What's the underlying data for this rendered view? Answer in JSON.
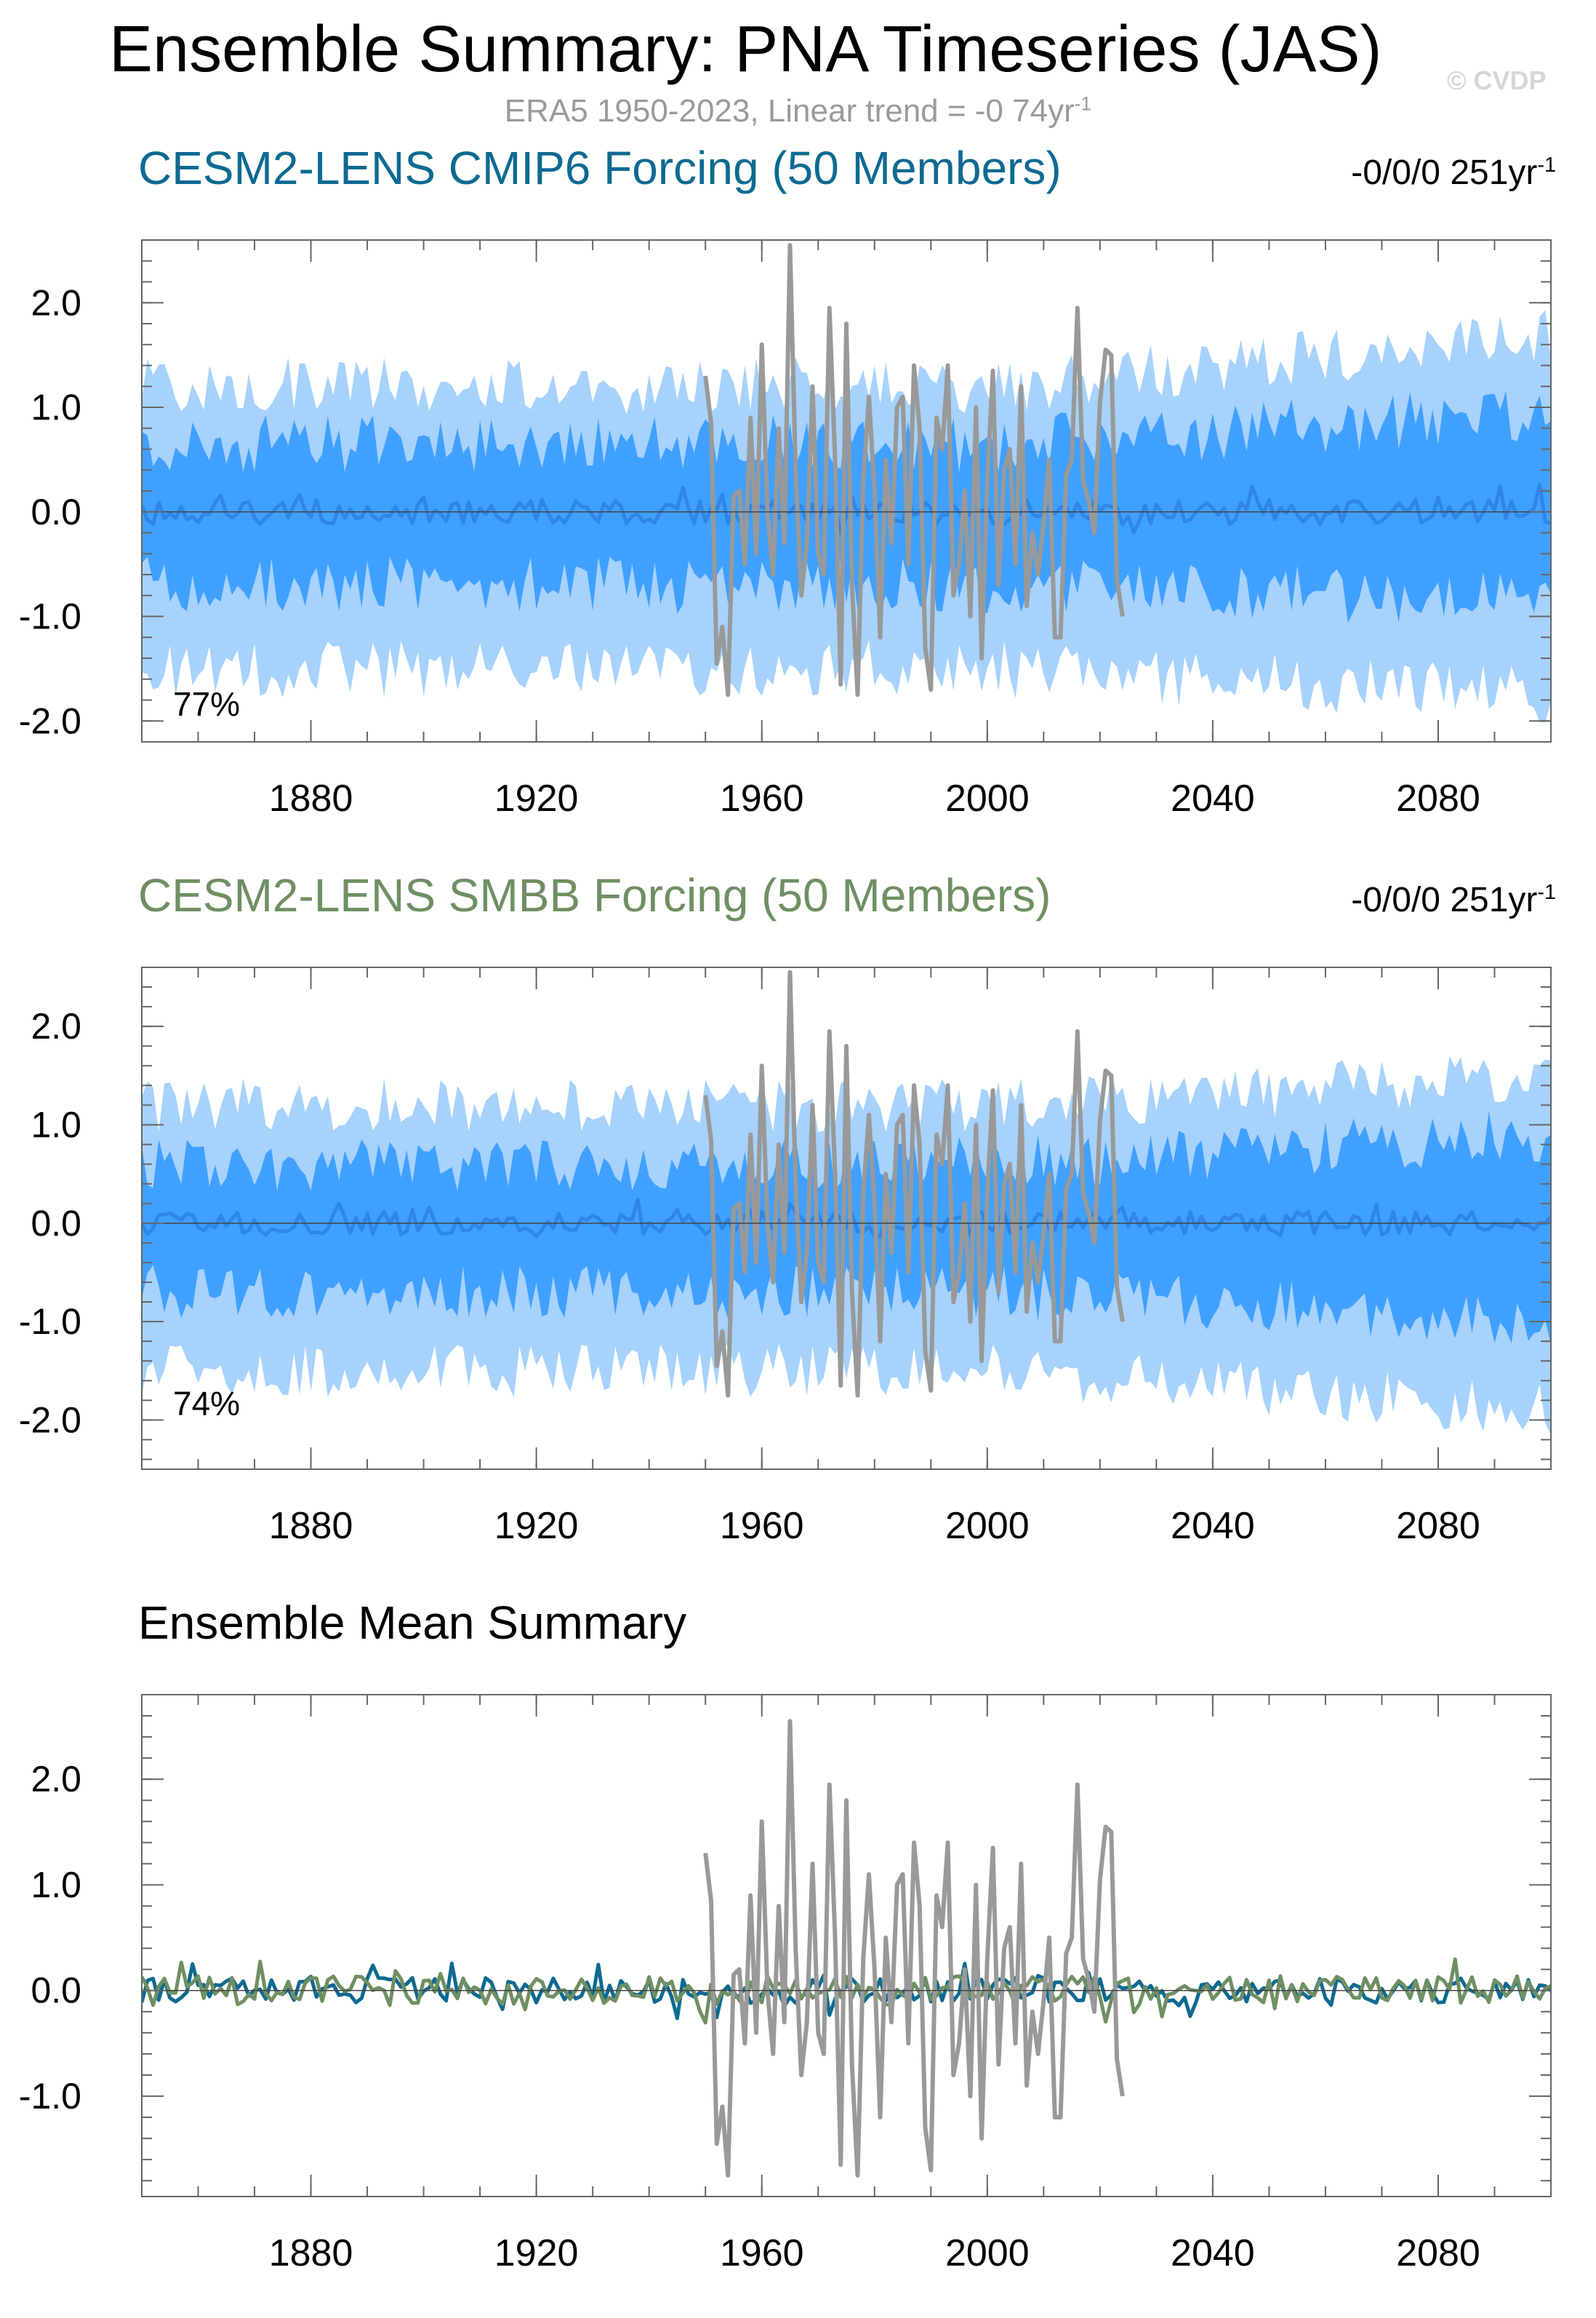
{
  "header": {
    "title": "Ensemble Summary: PNA Timeseries (JAS)",
    "subtitle_prefix": "ERA5 1950-2023, Linear trend = -0 74yr",
    "subtitle_sup": "-1",
    "watermark": "© CVDP"
  },
  "colors": {
    "outer_band": "#a6d2fb",
    "inner_band": "#3fa0ff",
    "ensemble_mean_band": "#2f86e6",
    "obs": "#999999",
    "cmip6": "#0e6a91",
    "smbb": "#6f8f63"
  },
  "panels": [
    {
      "title": "CESM2-LENS CMIP6 Forcing (50 Members)",
      "title_color": "#0e6a91",
      "trend_text": "-0/0/0 251yr",
      "trend_sup": "-1",
      "percent": "77%"
    },
    {
      "title": "CESM2-LENS SMBB Forcing (50 Members)",
      "title_color": "#6f8f63",
      "trend_text": "-0/0/0 251yr",
      "trend_sup": "-1",
      "percent": "74%"
    },
    {
      "title": "Ensemble Mean Summary",
      "title_color": "#000000"
    }
  ],
  "chart_data": [
    {
      "type": "area",
      "title": "CESM2-LENS CMIP6 Forcing (50 Members)",
      "x_range": [
        1850,
        2100
      ],
      "ylim": [
        -2.2,
        2.6
      ],
      "xticks": [
        1880,
        1920,
        1960,
        2000,
        2040,
        2080
      ],
      "xtick_labels": [
        "1880",
        "1920",
        "1960",
        "2000",
        "2040",
        "2080"
      ],
      "yticks": [
        -2.0,
        -1.0,
        0.0,
        1.0,
        2.0
      ],
      "ytick_labels": [
        "-2.0",
        "-1.0",
        "0.0",
        "1.0",
        "2.0"
      ],
      "series": [
        {
          "name": "outer range",
          "kind": "band",
          "x_start": 1850,
          "x_end": 2100,
          "lower_mean": -1.5,
          "upper_mean": 1.2,
          "lower_end": -1.75,
          "upper_end": 1.7
        },
        {
          "name": "inner range",
          "kind": "band",
          "x_start": 1850,
          "x_end": 2100,
          "lower_mean": -0.7,
          "upper_mean": 0.65,
          "lower_end": -0.85,
          "upper_end": 0.95
        },
        {
          "name": "ensemble mean",
          "kind": "line",
          "x_start": 1850,
          "x_end": 2100,
          "mean": 0.0,
          "amplitude": 0.12
        },
        {
          "name": "ERA5",
          "kind": "line",
          "x_start": 1950,
          "x_end": 2023,
          "values": [
            1.3,
            0.85,
            -1.45,
            -1.1,
            -1.75,
            0.15,
            0.2,
            -0.5,
            0.9,
            -0.4,
            1.6,
            0.0,
            -0.6,
            0.8,
            -0.3,
            2.55,
            0.4,
            -0.8,
            -0.3,
            1.2,
            -0.4,
            -0.6,
            1.95,
            0.5,
            -1.65,
            1.8,
            -0.7,
            -1.75,
            0.3,
            1.1,
            0.2,
            -1.2,
            0.5,
            -0.3,
            1.0,
            1.1,
            -0.5,
            1.4,
            0.8,
            -1.3,
            -1.7,
            0.9,
            0.6,
            1.4,
            -0.8,
            -0.5,
            0.2,
            -1.0,
            1.0,
            -1.4,
            0.3,
            1.35,
            -0.7,
            0.4,
            0.6,
            -0.5,
            1.2,
            -0.9,
            -0.2,
            -0.6,
            -0.1,
            0.5,
            -1.2,
            -1.2,
            0.35,
            0.5,
            1.95,
            0.3,
            0.1,
            -0.2,
            1.05,
            1.55,
            1.5,
            -0.65,
            -1.0
          ]
        }
      ]
    },
    {
      "type": "area",
      "title": "CESM2-LENS SMBB Forcing (50 Members)",
      "x_range": [
        1850,
        2100
      ],
      "ylim": [
        -2.5,
        2.6
      ],
      "xticks": [
        1880,
        1920,
        1960,
        2000,
        2040,
        2080
      ],
      "xtick_labels": [
        "1880",
        "1920",
        "1960",
        "2000",
        "2040",
        "2080"
      ],
      "yticks": [
        -2.0,
        -1.0,
        0.0,
        1.0,
        2.0
      ],
      "ytick_labels": [
        "-2.0",
        "-1.0",
        "0.0",
        "1.0",
        "2.0"
      ],
      "series": [
        {
          "name": "outer range",
          "kind": "band",
          "x_start": 1850,
          "x_end": 2100,
          "lower_mean": -1.5,
          "upper_mean": 1.2,
          "lower_end": -1.9,
          "upper_end": 1.5
        },
        {
          "name": "inner range",
          "kind": "band",
          "x_start": 1850,
          "x_end": 2100,
          "lower_mean": -0.7,
          "upper_mean": 0.6,
          "lower_end": -1.0,
          "upper_end": 0.9
        },
        {
          "name": "ensemble mean",
          "kind": "line",
          "x_start": 1850,
          "x_end": 2100,
          "mean": 0.0,
          "amplitude": 0.12
        },
        {
          "name": "ERA5",
          "kind": "line",
          "x_start": 1950,
          "x_end": 2023,
          "values": [
            1.3,
            0.85,
            -1.45,
            -1.1,
            -1.75,
            0.15,
            0.2,
            -0.5,
            0.9,
            -0.4,
            1.6,
            0.0,
            -0.6,
            0.8,
            -0.3,
            2.55,
            0.4,
            -0.8,
            -0.3,
            1.2,
            -0.4,
            -0.6,
            1.95,
            0.5,
            -1.65,
            1.8,
            -0.7,
            -1.75,
            0.3,
            1.1,
            0.2,
            -1.2,
            0.5,
            -0.3,
            1.0,
            1.1,
            -0.5,
            1.4,
            0.8,
            -1.3,
            -1.7,
            0.9,
            0.6,
            1.4,
            -0.8,
            -0.5,
            0.2,
            -1.0,
            1.0,
            -1.4,
            0.3,
            1.35,
            -0.7,
            0.4,
            0.6,
            -0.5,
            1.2,
            -0.9,
            -0.2,
            -0.6,
            -0.1,
            0.5,
            -1.2,
            -1.2,
            0.35,
            0.5,
            1.95,
            0.3,
            0.1,
            -0.2,
            1.05,
            1.55,
            1.5,
            -0.65,
            -1.0
          ]
        }
      ]
    },
    {
      "type": "line",
      "title": "Ensemble Mean Summary",
      "x_range": [
        1850,
        2100
      ],
      "ylim": [
        -1.95,
        2.8
      ],
      "xticks": [
        1880,
        1920,
        1960,
        2000,
        2040,
        2080
      ],
      "xtick_labels": [
        "1880",
        "1920",
        "1960",
        "2000",
        "2040",
        "2080"
      ],
      "yticks": [
        -1.0,
        0.0,
        1.0,
        2.0
      ],
      "ytick_labels": [
        "-1.0",
        "0.0",
        "1.0",
        "2.0"
      ],
      "series": [
        {
          "name": "CESM2-LENS CMIP6 Forcing ensemble mean",
          "kind": "line",
          "x_start": 1850,
          "x_end": 2100,
          "mean": 0.0,
          "amplitude": 0.12
        },
        {
          "name": "CESM2-LENS SMBB Forcing ensemble mean",
          "kind": "line",
          "x_start": 1850,
          "x_end": 2100,
          "mean": 0.0,
          "amplitude": 0.14
        },
        {
          "name": "ERA5",
          "kind": "line",
          "x_start": 1950,
          "x_end": 2023,
          "values": [
            1.3,
            0.85,
            -1.45,
            -1.1,
            -1.75,
            0.15,
            0.2,
            -0.5,
            0.9,
            -0.4,
            1.6,
            0.0,
            -0.6,
            0.8,
            -0.3,
            2.55,
            0.4,
            -0.8,
            -0.3,
            1.2,
            -0.4,
            -0.6,
            1.95,
            0.5,
            -1.65,
            1.8,
            -0.7,
            -1.75,
            0.3,
            1.1,
            0.2,
            -1.2,
            0.5,
            -0.3,
            1.0,
            1.1,
            -0.5,
            1.4,
            0.8,
            -1.3,
            -1.7,
            0.9,
            0.6,
            1.4,
            -0.8,
            -0.5,
            0.2,
            -1.0,
            1.0,
            -1.4,
            0.3,
            1.35,
            -0.7,
            0.4,
            0.6,
            -0.5,
            1.2,
            -0.9,
            -0.2,
            -0.6,
            -0.1,
            0.5,
            -1.2,
            -1.2,
            0.35,
            0.5,
            1.95,
            0.3,
            0.1,
            -0.2,
            1.05,
            1.55,
            1.5,
            -0.65,
            -1.0
          ]
        }
      ]
    }
  ]
}
